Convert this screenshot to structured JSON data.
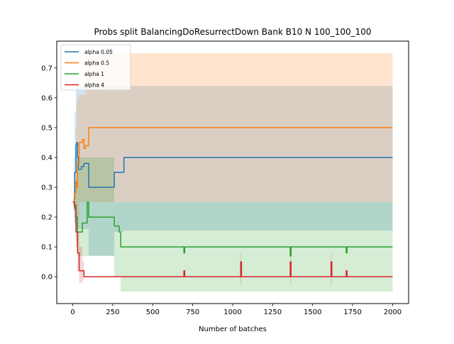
{
  "chart_data": {
    "type": "line",
    "title": "Probs split BalancingDoResurrectDown Bank B10 N 100_100_100",
    "xlabel": "Number of batches",
    "ylabel": "",
    "xlim": [
      -100,
      2100
    ],
    "ylim": [
      -0.09,
      0.79
    ],
    "xticks": [
      0,
      250,
      500,
      750,
      1000,
      1250,
      1500,
      1750,
      2000
    ],
    "yticks": [
      0.0,
      0.1,
      0.2,
      0.3,
      0.4,
      0.5,
      0.6,
      0.7
    ],
    "grid": false,
    "legend_position": "top-left",
    "series": [
      {
        "name": "alpha 0.05",
        "color": "#1f77b4",
        "x": [
          0,
          8,
          12,
          20,
          25,
          30,
          35,
          45,
          55,
          70,
          85,
          100,
          120,
          250,
          260,
          300,
          320,
          2000
        ],
        "y": [
          0.25,
          0.26,
          0.35,
          0.44,
          0.45,
          0.4,
          0.36,
          0.36,
          0.37,
          0.38,
          0.38,
          0.3,
          0.3,
          0.3,
          0.35,
          0.35,
          0.4,
          0.4
        ],
        "band_upper": [
          0.25,
          0.4,
          0.55,
          0.65,
          0.64,
          0.64,
          0.64,
          0.64,
          0.64,
          0.64,
          0.64,
          0.64,
          0.64,
          0.64,
          0.64,
          0.64,
          0.64,
          0.64
        ],
        "band_lower": [
          0.25,
          0.2,
          0.18,
          0.16,
          0.16,
          0.16,
          0.16,
          0.16,
          0.16,
          0.16,
          0.16,
          0.07,
          0.07,
          0.07,
          0.15,
          0.15,
          0.155,
          0.155
        ]
      },
      {
        "name": "alpha 0.5",
        "color": "#ff7f0e",
        "x": [
          0,
          10,
          20,
          25,
          30,
          40,
          50,
          60,
          70,
          80,
          100,
          120,
          2000
        ],
        "y": [
          0.25,
          0.28,
          0.32,
          0.3,
          0.38,
          0.45,
          0.45,
          0.46,
          0.43,
          0.44,
          0.5,
          0.5,
          0.5
        ],
        "band_upper": [
          0.25,
          0.35,
          0.5,
          0.58,
          0.6,
          0.61,
          0.61,
          0.61,
          0.61,
          0.75,
          0.75,
          0.75,
          0.75
        ],
        "band_lower": [
          0.25,
          0.22,
          0.2,
          0.2,
          0.2,
          0.25,
          0.25,
          0.25,
          0.25,
          0.25,
          0.25,
          0.25,
          0.25
        ]
      },
      {
        "name": "alpha 1",
        "color": "#2ca02c",
        "x": [
          0,
          10,
          20,
          30,
          40,
          60,
          80,
          90,
          100,
          250,
          260,
          290,
          300,
          690,
          695,
          700,
          1050,
          1355,
          1360,
          1365,
          1615,
          1705,
          1710,
          1715,
          2000
        ],
        "y": [
          0.25,
          0.23,
          0.2,
          0.15,
          0.15,
          0.18,
          0.18,
          0.25,
          0.2,
          0.2,
          0.17,
          0.15,
          0.1,
          0.1,
          0.08,
          0.1,
          0.1,
          0.1,
          0.07,
          0.1,
          0.1,
          0.1,
          0.08,
          0.1,
          0.1
        ],
        "band_upper": [
          0.25,
          0.3,
          0.35,
          0.4,
          0.4,
          0.4,
          0.4,
          0.4,
          0.4,
          0.4,
          0.25,
          0.25,
          0.25,
          0.25,
          0.25,
          0.25,
          0.25,
          0.25,
          0.25,
          0.25,
          0.25,
          0.25,
          0.25,
          0.25,
          0.25
        ],
        "band_lower": [
          0.25,
          0.18,
          0.12,
          0.07,
          0.07,
          0.07,
          0.07,
          0.07,
          0.07,
          0.07,
          0.0,
          0.0,
          -0.05,
          -0.05,
          -0.05,
          -0.05,
          -0.05,
          -0.05,
          -0.05,
          -0.05,
          -0.05,
          -0.05,
          -0.05,
          -0.05,
          -0.05
        ]
      },
      {
        "name": "alpha 4",
        "color": "#d62728",
        "x": [
          0,
          10,
          20,
          30,
          40,
          60,
          70,
          80,
          690,
          695,
          700,
          1045,
          1050,
          1055,
          1355,
          1360,
          1365,
          1610,
          1615,
          1620,
          1705,
          1710,
          1715,
          2000
        ],
        "y": [
          0.25,
          0.24,
          0.15,
          0.08,
          0.02,
          0.02,
          0.0,
          0.0,
          0.0,
          0.02,
          0.0,
          0.0,
          0.05,
          0.0,
          0.0,
          0.05,
          0.0,
          0.0,
          0.05,
          0.0,
          0.0,
          0.02,
          0.0,
          0.0
        ],
        "band_upper": [
          0.25,
          0.25,
          0.2,
          0.15,
          0.1,
          0.05,
          0.0,
          0.0,
          0.0,
          0.02,
          0.0,
          0.0,
          0.08,
          0.0,
          0.0,
          0.08,
          0.0,
          0.0,
          0.08,
          0.0,
          0.0,
          0.02,
          0.0,
          0.0
        ],
        "band_lower": [
          0.25,
          0.22,
          0.1,
          0.02,
          -0.02,
          -0.01,
          0.0,
          0.0,
          0.0,
          0.0,
          0.0,
          0.0,
          -0.03,
          0.0,
          0.0,
          -0.03,
          0.0,
          0.0,
          -0.03,
          0.0,
          0.0,
          0.0,
          0.0,
          0.0
        ]
      }
    ]
  }
}
